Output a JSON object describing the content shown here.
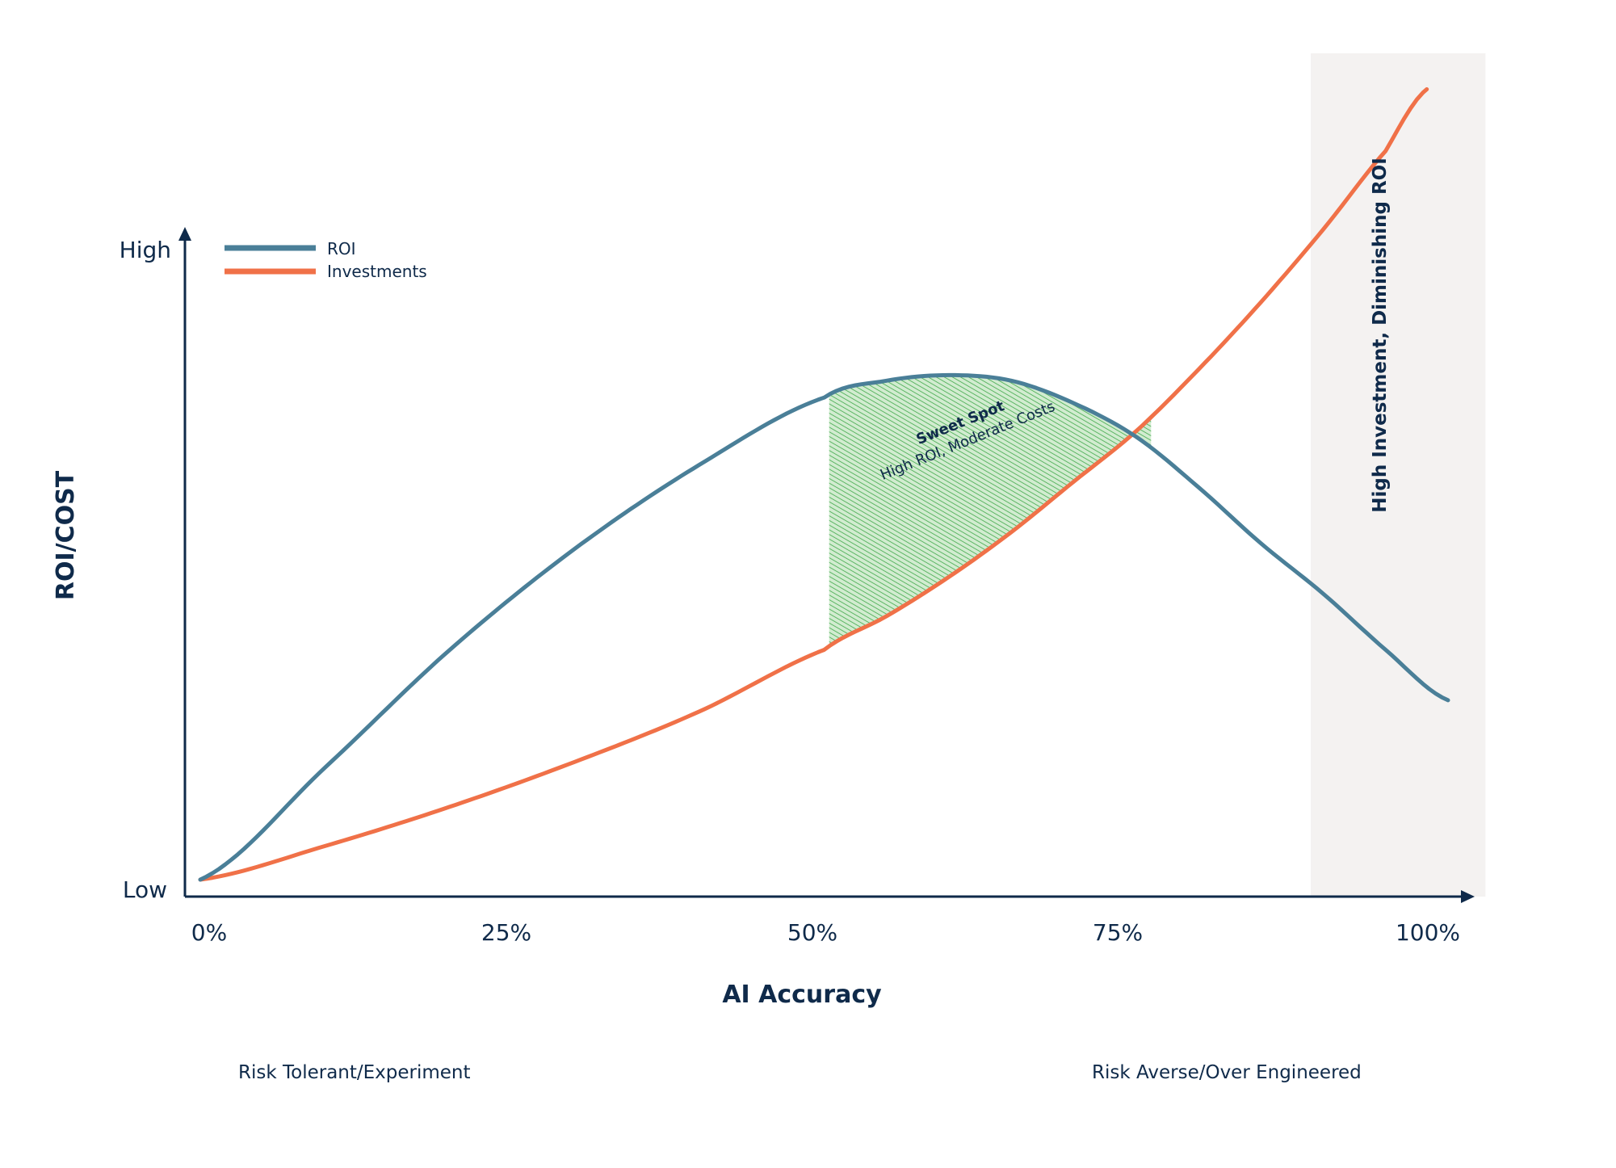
{
  "chart_data": {
    "type": "line",
    "xlabel": "AI Accuracy",
    "ylabel": "ROI/COST",
    "x_ticks": [
      "0%",
      "25%",
      "50%",
      "75%",
      "100%"
    ],
    "y_ticks": [
      "Low",
      "High"
    ],
    "xlim": [
      0,
      100
    ],
    "grid": false,
    "legend_position": "top-left",
    "series": [
      {
        "name": "ROI",
        "color": "#4a7f98",
        "x": [
          0,
          10,
          20,
          30,
          40,
          50,
          55,
          60,
          65,
          70,
          75,
          80,
          85,
          90,
          95,
          100
        ],
        "y": [
          0,
          0.2,
          0.41,
          0.59,
          0.74,
          0.86,
          0.89,
          0.9,
          0.89,
          0.85,
          0.79,
          0.7,
          0.6,
          0.51,
          0.41,
          0.32
        ]
      },
      {
        "name": "Investments",
        "color": "#f07148",
        "x": [
          0,
          10,
          20,
          30,
          40,
          50,
          55,
          60,
          65,
          70,
          75,
          80,
          85,
          90,
          95,
          98.3
        ],
        "y": [
          0,
          0.06,
          0.13,
          0.21,
          0.3,
          0.41,
          0.47,
          0.54,
          0.62,
          0.71,
          0.8,
          0.91,
          1.03,
          1.16,
          1.3,
          1.41
        ]
      }
    ],
    "regions": [
      {
        "type": "hatched",
        "x_start": 50.4,
        "x_end": 76.2,
        "color": "#3fa84a",
        "label_title": "Sweet Spot",
        "label_sub": "High ROI, Moderate Costs"
      },
      {
        "type": "shaded",
        "x_start": 89,
        "x_end": 103,
        "color": "#f4f2f1",
        "label": "High Investment, Diminishing ROI"
      }
    ],
    "annotations": {
      "left_note": "Risk Tolerant/Experiment",
      "right_note": "Risk Averse/Over Engineered"
    }
  }
}
